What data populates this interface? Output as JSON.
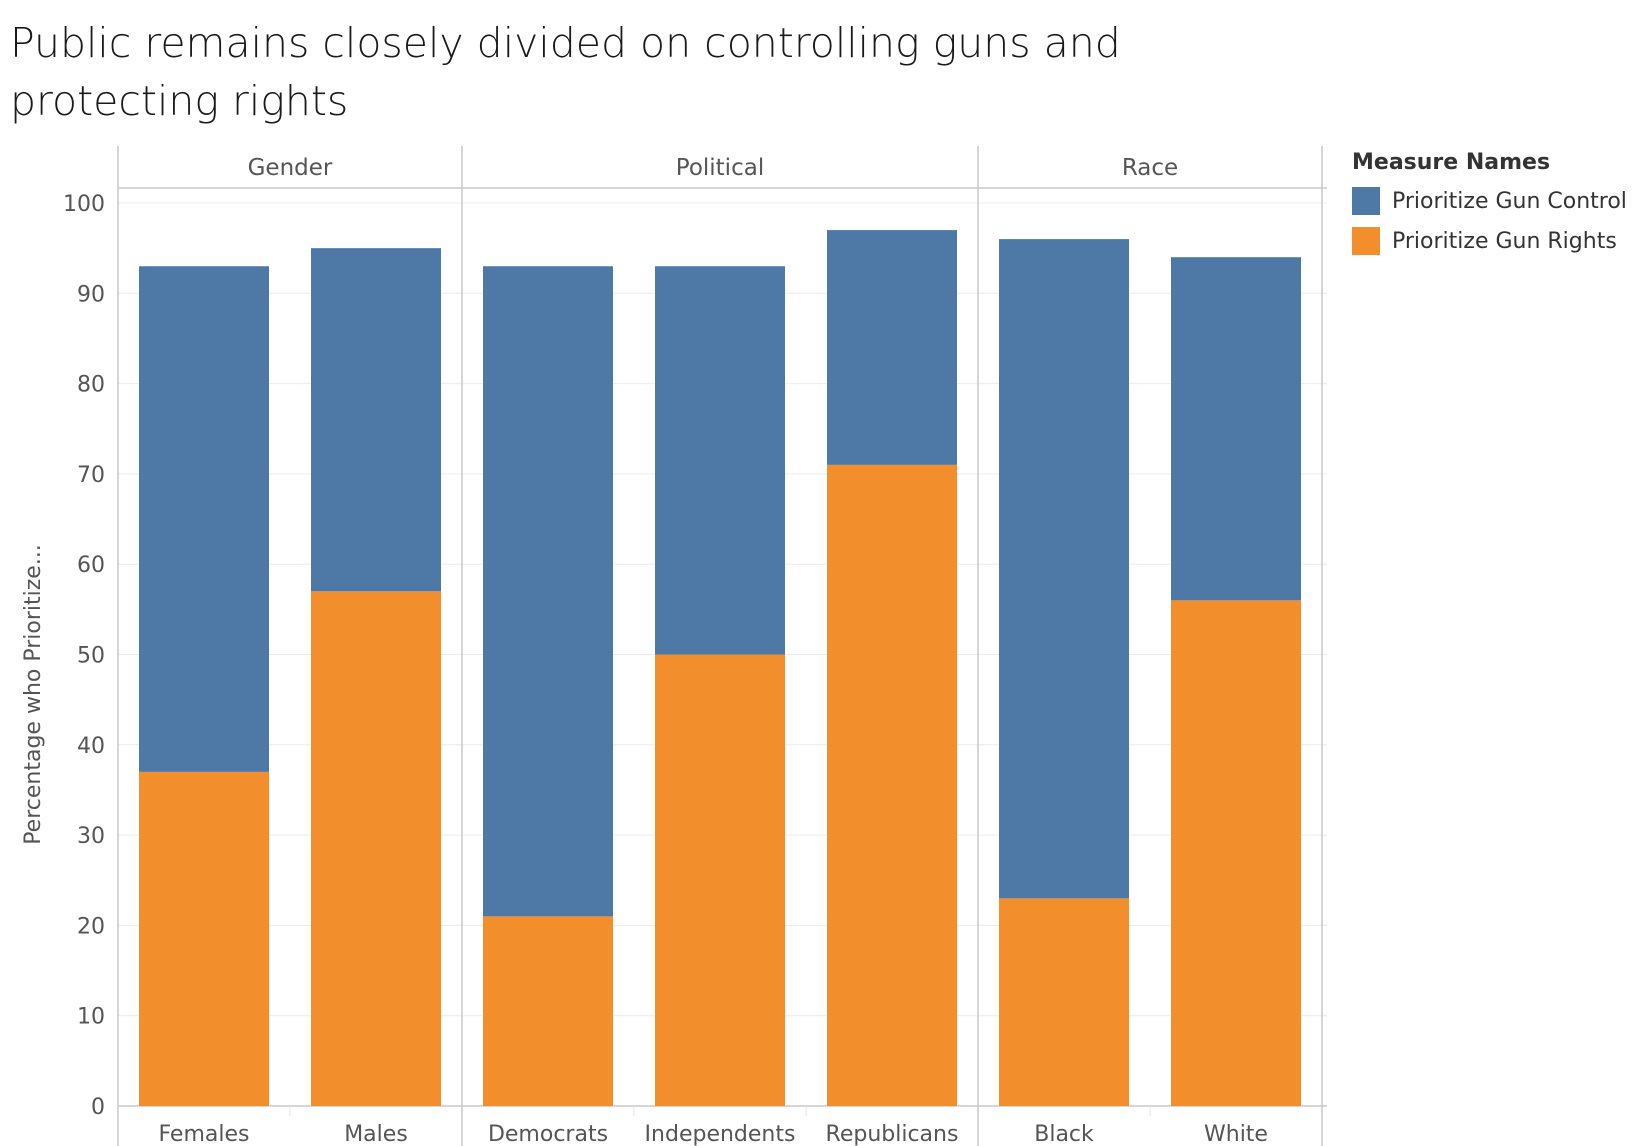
{
  "chart_data": {
    "type": "bar",
    "stacked": true,
    "title": "Public remains closely divided on controlling guns and protecting rights",
    "ylabel": "Percentage who Prioritize...",
    "ylim": [
      0,
      100
    ],
    "yticks": [
      0,
      10,
      20,
      30,
      40,
      50,
      60,
      70,
      80,
      90,
      100
    ],
    "grid": true,
    "legend": {
      "title": "Measure Names",
      "placement": "right"
    },
    "panels": [
      {
        "name": "Gender",
        "categories": [
          "Females",
          "Males"
        ]
      },
      {
        "name": "Political",
        "categories": [
          "Democrats",
          "Independents",
          "Republicans"
        ]
      },
      {
        "name": "Race",
        "categories": [
          "Black",
          "White"
        ]
      }
    ],
    "series": [
      {
        "name": "Prioritize Gun Rights",
        "color": "#F28E2B",
        "values": [
          37,
          57,
          21,
          50,
          71,
          23,
          56
        ]
      },
      {
        "name": "Prioritize Gun Control",
        "color": "#4E79A7",
        "values": [
          56,
          38,
          72,
          43,
          26,
          73,
          38
        ]
      }
    ]
  }
}
